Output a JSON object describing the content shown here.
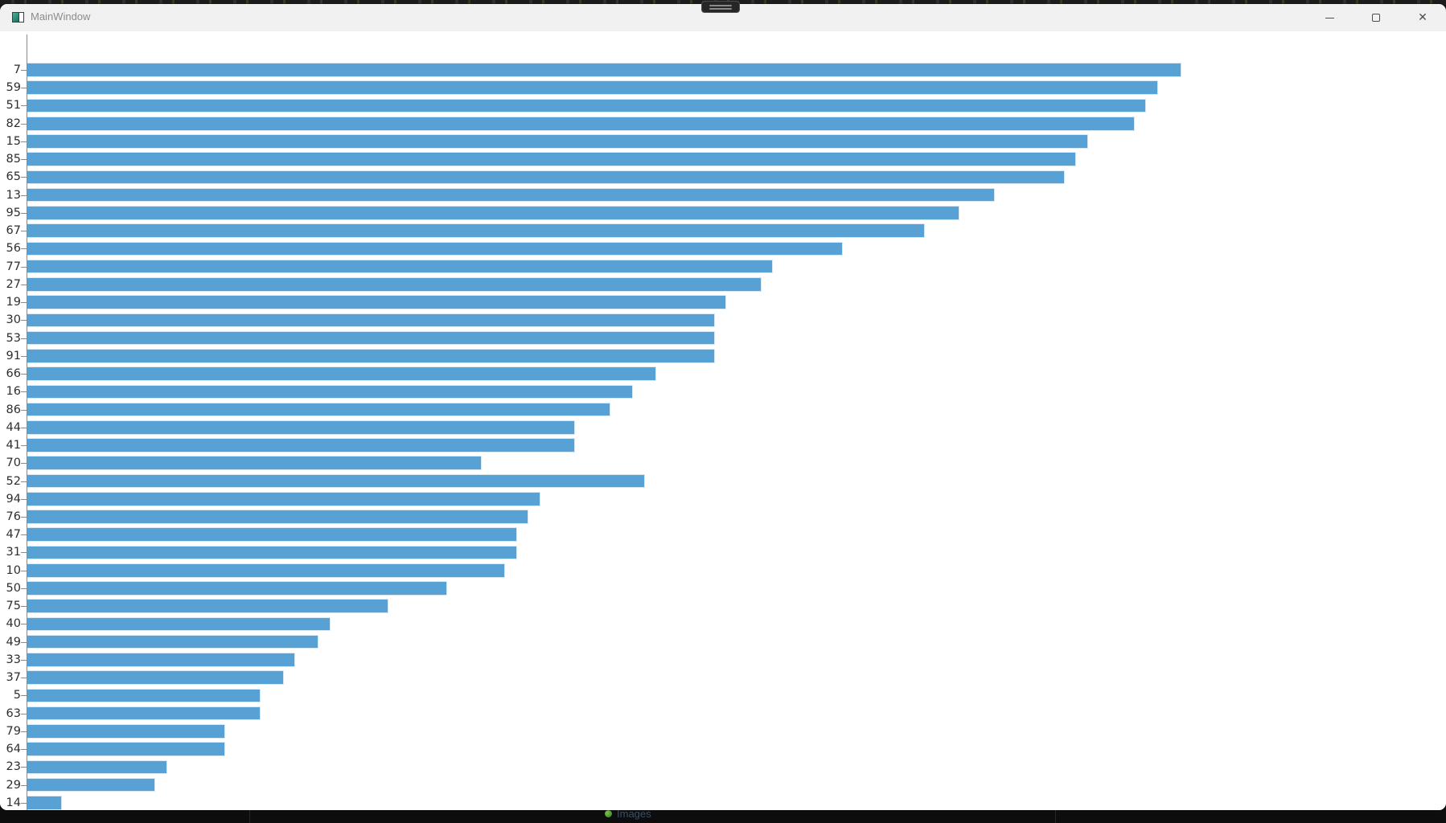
{
  "window": {
    "title": "MainWindow",
    "controls": {
      "minimize": "minimize",
      "maximize": "maximize",
      "close_glyph": "✕"
    }
  },
  "background": {
    "taskbar_item_label": "Images"
  },
  "colors": {
    "bar_fill": "#58a1d4",
    "bar_edge": "#d9e9f6",
    "axis": "#8a8a8a",
    "titlebar_bg": "#f1f1f1",
    "title_text": "#8c8c8c",
    "icon_teal": "#2f8d78"
  },
  "chart_data": {
    "type": "bar",
    "orientation": "horizontal",
    "title": "",
    "xlabel": "",
    "ylabel": "",
    "xlim": [
      0,
      120
    ],
    "xticks": [
      0,
      20,
      40,
      60,
      80,
      100,
      120
    ],
    "grid": false,
    "legend": "none",
    "categories": [
      "7",
      "59",
      "51",
      "82",
      "15",
      "85",
      "65",
      "13",
      "95",
      "67",
      "56",
      "77",
      "27",
      "19",
      "30",
      "53",
      "91",
      "66",
      "16",
      "86",
      "44",
      "41",
      "70",
      "52",
      "94",
      "76",
      "47",
      "31",
      "10",
      "50",
      "75",
      "40",
      "49",
      "33",
      "37",
      "5",
      "63",
      "79",
      "64",
      "23",
      "29",
      "14"
    ],
    "values": [
      99,
      97,
      96,
      95,
      91,
      90,
      89,
      83,
      80,
      77,
      70,
      64,
      63,
      60,
      59,
      59,
      59,
      54,
      52,
      50,
      47,
      47,
      39,
      53,
      44,
      43,
      42,
      42,
      41,
      36,
      31,
      26,
      25,
      23,
      22,
      20,
      20,
      17,
      17,
      12,
      11,
      3
    ]
  }
}
